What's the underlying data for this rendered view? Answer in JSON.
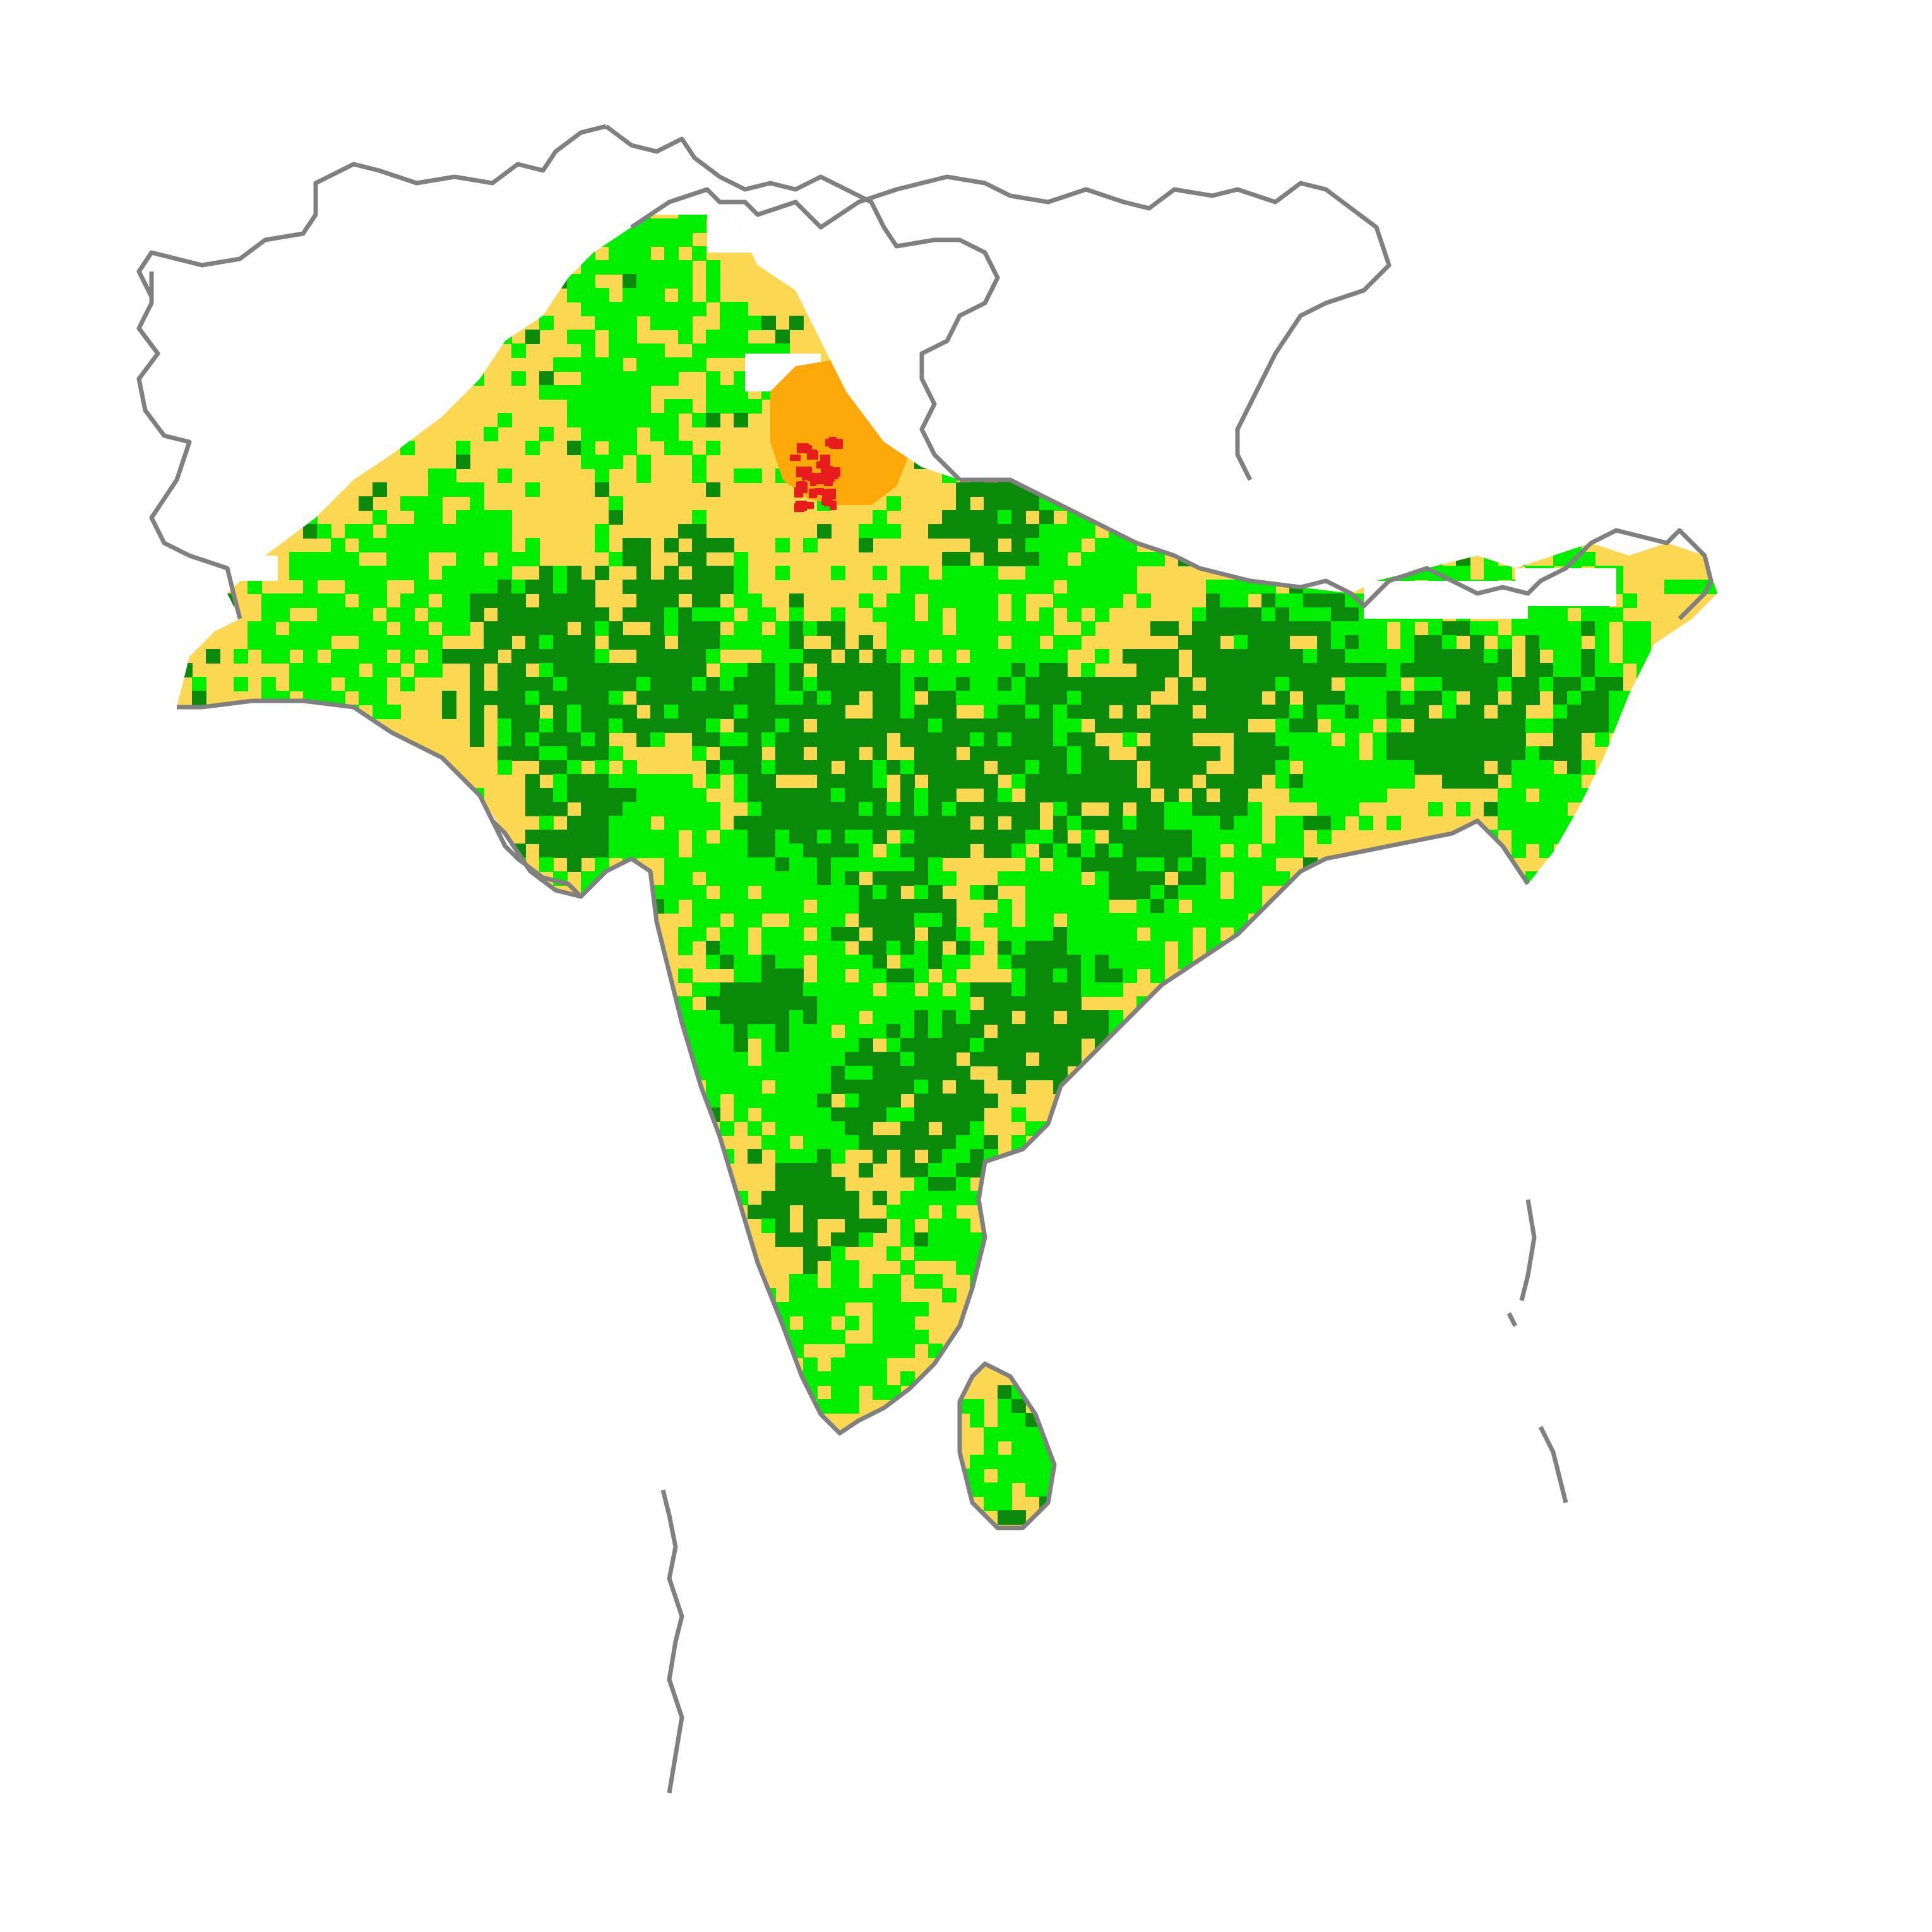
{
  "map": {
    "colors": {
      "outline": "#808080",
      "dark_green": "#0b8a0b",
      "bright_green": "#00ee00",
      "yellow": "#fcd752",
      "orange": "#fba808",
      "red": "#e81c1c",
      "nodata": "#ffffff"
    },
    "categories": [
      {
        "key": "dark_green",
        "color": "#0b8a0b"
      },
      {
        "key": "bright_green",
        "color": "#00ee00"
      },
      {
        "key": "yellow",
        "color": "#fcd752"
      },
      {
        "key": "orange",
        "color": "#fba808"
      },
      {
        "key": "red",
        "color": "#e81c1c"
      }
    ]
  }
}
